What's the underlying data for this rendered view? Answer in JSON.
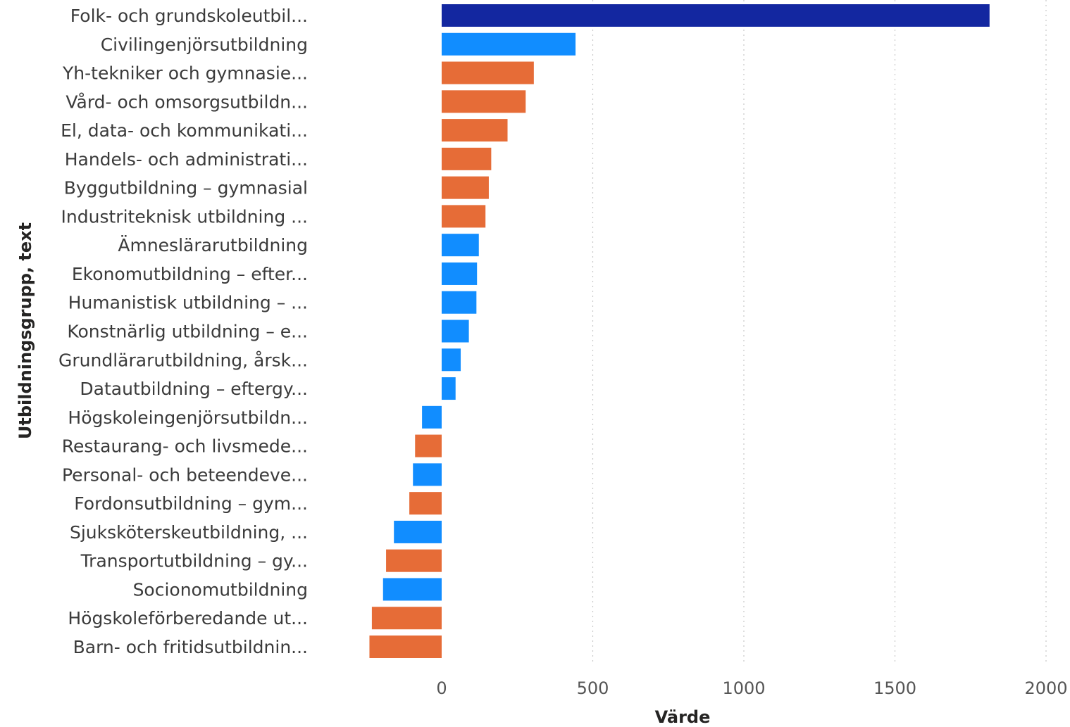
{
  "chart_data": {
    "type": "bar",
    "orientation": "horizontal",
    "xlabel": "Värde",
    "ylabel": "Utbildningsgrupp, text",
    "xlim": [
      -240,
      2000
    ],
    "xticks": [
      0,
      500,
      1000,
      1500,
      2000
    ],
    "grid": "vertical-dotted",
    "legend": "none",
    "colors": {
      "highlight": "#1327A0",
      "blue": "#118DFF",
      "orange": "#E66C37"
    },
    "bars": [
      {
        "label": "Folk- och grundskoleutbil...",
        "value": 1813,
        "color": "highlight"
      },
      {
        "label": "Civilingenjörsutbildning",
        "value": 443,
        "color": "blue"
      },
      {
        "label": "Yh-tekniker och gymnasie...",
        "value": 305,
        "color": "orange"
      },
      {
        "label": "Vård- och omsorgsutbildn...",
        "value": 278,
        "color": "orange"
      },
      {
        "label": "El, data- och kommunikati...",
        "value": 218,
        "color": "orange"
      },
      {
        "label": "Handels- och administrati...",
        "value": 164,
        "color": "orange"
      },
      {
        "label": "Byggutbildning – gymnasial",
        "value": 156,
        "color": "orange"
      },
      {
        "label": "Industriteknisk utbildning ...",
        "value": 145,
        "color": "orange"
      },
      {
        "label": "Ämneslärarutbildning",
        "value": 123,
        "color": "blue"
      },
      {
        "label": "Ekonomutbildning – efter...",
        "value": 117,
        "color": "blue"
      },
      {
        "label": "Humanistisk utbildning – ...",
        "value": 115,
        "color": "blue"
      },
      {
        "label": "Konstnärlig utbildning – e...",
        "value": 90,
        "color": "blue"
      },
      {
        "label": "Grundlärarutbildning, årsk...",
        "value": 63,
        "color": "blue"
      },
      {
        "label": "Datautbildning – eftergy...",
        "value": 46,
        "color": "blue"
      },
      {
        "label": "Högskoleingenjörsutbildn...",
        "value": -65,
        "color": "blue"
      },
      {
        "label": "Restaurang- och livsmede...",
        "value": -88,
        "color": "orange"
      },
      {
        "label": "Personal- och beteendeve...",
        "value": -95,
        "color": "blue"
      },
      {
        "label": "Fordonsutbildning – gym...",
        "value": -107,
        "color": "orange"
      },
      {
        "label": "Sjuksköterskeutbildning, ...",
        "value": -158,
        "color": "blue"
      },
      {
        "label": "Transportutbildning – gy...",
        "value": -184,
        "color": "orange"
      },
      {
        "label": "Socionomutbildning",
        "value": -194,
        "color": "blue"
      },
      {
        "label": "Högskoleförberedande ut...",
        "value": -231,
        "color": "orange"
      },
      {
        "label": "Barn- och fritidsutbildnin...",
        "value": -239,
        "color": "orange"
      }
    ]
  }
}
